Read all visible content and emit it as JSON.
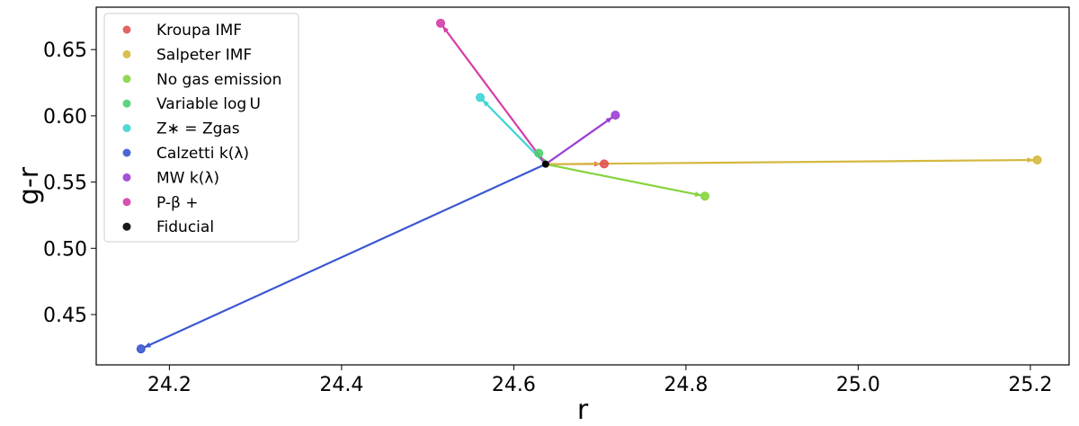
{
  "chart_data": {
    "type": "scatter",
    "title": "",
    "xlabel": "r",
    "ylabel": "g-r",
    "xlim": [
      24.115,
      25.245
    ],
    "ylim": [
      0.412,
      0.682
    ],
    "xticks": [
      "24.2",
      "24.4",
      "24.6",
      "24.8",
      "25.0",
      "25.2"
    ],
    "yticks": [
      "0.45",
      "0.50",
      "0.55",
      "0.60",
      "0.65"
    ],
    "grid": false,
    "legend_position": "top-left",
    "fiducial": {
      "name": "Fiducial",
      "x": 24.637,
      "y": 0.5635,
      "color": "#000000"
    },
    "series": [
      {
        "name": "Kroupa IMF",
        "legend_label": "Kroupa IMF",
        "color": "#e05353",
        "x": 24.705,
        "y": 0.5637
      },
      {
        "name": "Salpeter IMF",
        "legend_label": "Salpeter IMF",
        "color": "#d4b83e",
        "x": 25.208,
        "y": 0.5667
      },
      {
        "name": "No gas emission",
        "legend_label": "No gas emission",
        "color": "#86d43e",
        "x": 24.822,
        "y": 0.5394
      },
      {
        "name": "Variable log U",
        "legend_label": "Variable log U",
        "color": "#4ecf71",
        "x": 24.629,
        "y": 0.5718
      },
      {
        "name": "Z* = Zgas",
        "legend_label": "Z∗ = Zgas",
        "color": "#3ed4d4",
        "x": 24.561,
        "y": 0.6138
      },
      {
        "name": "Calzetti k(λ)",
        "legend_label": "Calzetti k(λ)",
        "color": "#3b56d1",
        "x": 24.167,
        "y": 0.4241
      },
      {
        "name": "MW k(λ)",
        "legend_label": "MW k(λ)",
        "color": "#9b3ed4",
        "x": 24.718,
        "y": 0.6005
      },
      {
        "name": "P-β+",
        "legend_label": "P-β +",
        "color": "#d43ea8",
        "x": 24.515,
        "y": 0.6699
      }
    ]
  }
}
